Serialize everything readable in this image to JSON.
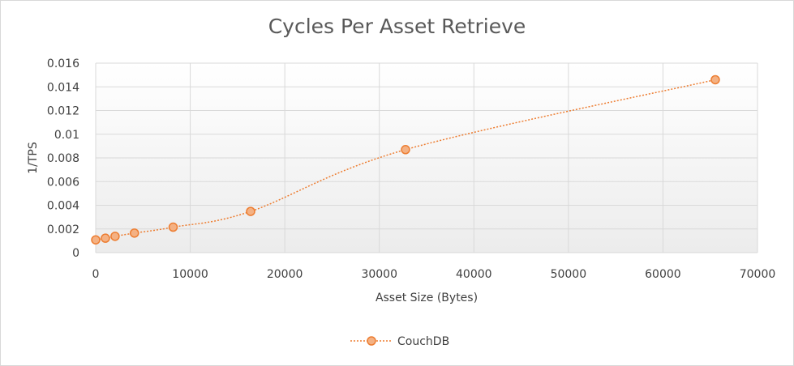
{
  "chart_data": {
    "type": "scatter",
    "title": "Cycles Per Asset Retrieve",
    "xlabel": "Asset Size (Bytes)",
    "ylabel": "1/TPS",
    "xlim": [
      0,
      70000
    ],
    "ylim": [
      0,
      0.016
    ],
    "x_ticks": [
      0,
      10000,
      20000,
      30000,
      40000,
      50000,
      60000,
      70000
    ],
    "y_ticks": [
      0,
      0.002,
      0.004,
      0.006,
      0.008,
      0.01,
      0.012,
      0.014,
      0.016
    ],
    "x_tick_labels": [
      "0",
      "10000",
      "20000",
      "30000",
      "40000",
      "50000",
      "60000",
      "70000"
    ],
    "y_tick_labels": [
      "0",
      "0.002",
      "0.004",
      "0.006",
      "0.008",
      "0.01",
      "0.012",
      "0.014",
      "0.016"
    ],
    "grid": true,
    "legend_position": "bottom",
    "series": [
      {
        "name": "CouchDB",
        "color": "#ed7d31",
        "line_style": "dotted-smooth",
        "marker": "circle",
        "x": [
          0,
          1024,
          2048,
          4096,
          8192,
          16384,
          32768,
          65536
        ],
        "y": [
          0.00108,
          0.00122,
          0.00138,
          0.00165,
          0.00215,
          0.00348,
          0.0087,
          0.0146
        ]
      }
    ]
  }
}
